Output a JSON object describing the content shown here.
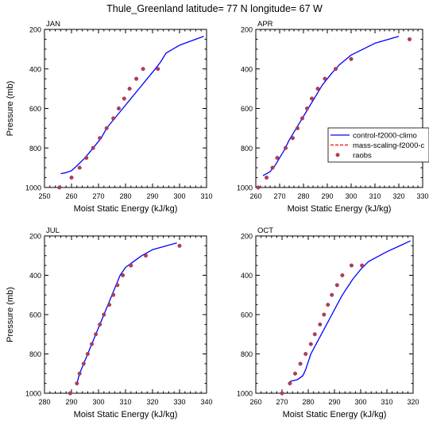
{
  "figure": {
    "title": "Thule_Greenland  latitude= 77 N longitude= 67 W"
  },
  "legend": {
    "placement": "right of APR panel",
    "entries": [
      {
        "label": "control-f2000-climo",
        "color": "#0000ff",
        "style": "solid-line"
      },
      {
        "label": "mass-scaling-f2000-c",
        "color": "#ff0000",
        "style": "dashed-line"
      },
      {
        "label": "raobs",
        "color": "#b23c5c",
        "style": "marker"
      }
    ]
  },
  "chart_data": [
    {
      "type": "line",
      "panel": "JAN",
      "title": "JAN",
      "xlabel": "Moist Static Energy (kJ/kg)",
      "ylabel": "Pressure (mb)",
      "xlim": [
        250,
        310
      ],
      "ylim": [
        1000,
        200
      ],
      "xticks": [
        250,
        260,
        270,
        280,
        290,
        300,
        310
      ],
      "yticks": [
        200,
        400,
        600,
        800,
        1000
      ],
      "y_axis": "inverted",
      "series": [
        {
          "name": "control-f2000-climo",
          "color": "#0000ff",
          "x": [
            256,
            258,
            260,
            262,
            265,
            268,
            271,
            273,
            276,
            279,
            282,
            285,
            288,
            291,
            293,
            295,
            300,
            306,
            309
          ],
          "y": [
            930,
            925,
            915,
            890,
            850,
            800,
            750,
            700,
            650,
            600,
            550,
            500,
            450,
            400,
            365,
            320,
            280,
            250,
            235
          ]
        },
        {
          "name": "raobs",
          "color": "#b23c5c",
          "marker": "dot",
          "x": [
            255.5,
            260,
            263,
            265.5,
            268,
            270.5,
            273,
            275.5,
            277.5,
            279.5,
            281.5,
            284,
            286.5,
            292
          ],
          "y": [
            1000,
            950,
            900,
            850,
            800,
            750,
            700,
            650,
            600,
            550,
            500,
            450,
            400,
            400
          ]
        }
      ]
    },
    {
      "type": "line",
      "panel": "APR",
      "title": "APR",
      "xlabel": "Moist Static Energy (kJ/kg)",
      "ylabel": "",
      "xlim": [
        260,
        330
      ],
      "ylim": [
        1000,
        200
      ],
      "xticks": [
        260,
        270,
        280,
        290,
        300,
        310,
        320,
        330
      ],
      "yticks": [
        200,
        400,
        600,
        800,
        1000
      ],
      "y_axis": "inverted",
      "series": [
        {
          "name": "control-f2000-climo",
          "color": "#0000ff",
          "x": [
            263,
            266,
            268,
            270,
            272,
            274,
            276,
            278,
            280,
            282,
            284,
            286,
            288,
            290,
            292,
            295,
            300,
            310,
            320
          ],
          "y": [
            940,
            920,
            890,
            850,
            810,
            760,
            720,
            680,
            640,
            600,
            560,
            520,
            480,
            450,
            420,
            380,
            330,
            270,
            235
          ]
        },
        {
          "name": "raobs",
          "color": "#b23c5c",
          "marker": "dot",
          "x": [
            261,
            264.5,
            267,
            269,
            272.5,
            275.5,
            277.5,
            279.5,
            281.5,
            283.5,
            286,
            289,
            293.5,
            300,
            324.5
          ],
          "y": [
            1000,
            950,
            900,
            850,
            800,
            750,
            700,
            650,
            600,
            550,
            500,
            450,
            400,
            350,
            250
          ]
        }
      ]
    },
    {
      "type": "line",
      "panel": "JUL",
      "title": "JUL",
      "xlabel": "Moist Static Energy (kJ/kg)",
      "ylabel": "Pressure (mb)",
      "xlim": [
        280,
        340
      ],
      "ylim": [
        1000,
        200
      ],
      "xticks": [
        280,
        290,
        300,
        310,
        320,
        330,
        340
      ],
      "yticks": [
        200,
        400,
        600,
        800,
        1000
      ],
      "y_axis": "inverted",
      "series": [
        {
          "name": "control-f2000-climo",
          "color": "#0000ff",
          "x": [
            292,
            293,
            294.5,
            296,
            297.5,
            299,
            300.5,
            302,
            303.5,
            305,
            306.5,
            308,
            310,
            313,
            316,
            320,
            329
          ],
          "y": [
            950,
            900,
            850,
            800,
            750,
            700,
            650,
            600,
            550,
            500,
            450,
            400,
            360,
            330,
            300,
            270,
            235
          ]
        },
        {
          "name": "raobs",
          "color": "#b23c5c",
          "marker": "dot",
          "x": [
            289.5,
            292,
            293,
            294.5,
            296,
            297.5,
            299,
            300.5,
            302,
            304,
            305.5,
            307,
            309,
            312,
            317.5,
            330
          ],
          "y": [
            1000,
            950,
            900,
            850,
            800,
            750,
            700,
            650,
            600,
            550,
            500,
            450,
            400,
            350,
            300,
            250
          ]
        }
      ]
    },
    {
      "type": "line",
      "panel": "OCT",
      "title": "OCT",
      "xlabel": "Moist Static Energy (kJ/kg)",
      "ylabel": "",
      "xlim": [
        260,
        320
      ],
      "ylim": [
        1000,
        200
      ],
      "xticks": [
        260,
        270,
        280,
        290,
        300,
        310,
        320
      ],
      "yticks": [
        200,
        400,
        600,
        800,
        1000
      ],
      "y_axis": "inverted",
      "series": [
        {
          "name": "control-f2000-climo",
          "color": "#0000ff",
          "x": [
            273,
            276,
            278,
            279,
            280,
            281,
            283,
            285,
            287,
            289,
            291,
            293,
            295,
            297,
            300,
            303,
            310,
            319
          ],
          "y": [
            940,
            930,
            910,
            880,
            840,
            800,
            750,
            700,
            650,
            600,
            550,
            500,
            460,
            420,
            370,
            330,
            280,
            225
          ]
        },
        {
          "name": "raobs",
          "color": "#b23c5c",
          "marker": "dot",
          "x": [
            270,
            273,
            275,
            277,
            279,
            281,
            282.5,
            284.5,
            286,
            287.5,
            289,
            291,
            293,
            296.5,
            300.5
          ],
          "y": [
            1000,
            950,
            900,
            850,
            800,
            750,
            700,
            650,
            600,
            550,
            500,
            450,
            400,
            350,
            350
          ]
        }
      ]
    }
  ]
}
